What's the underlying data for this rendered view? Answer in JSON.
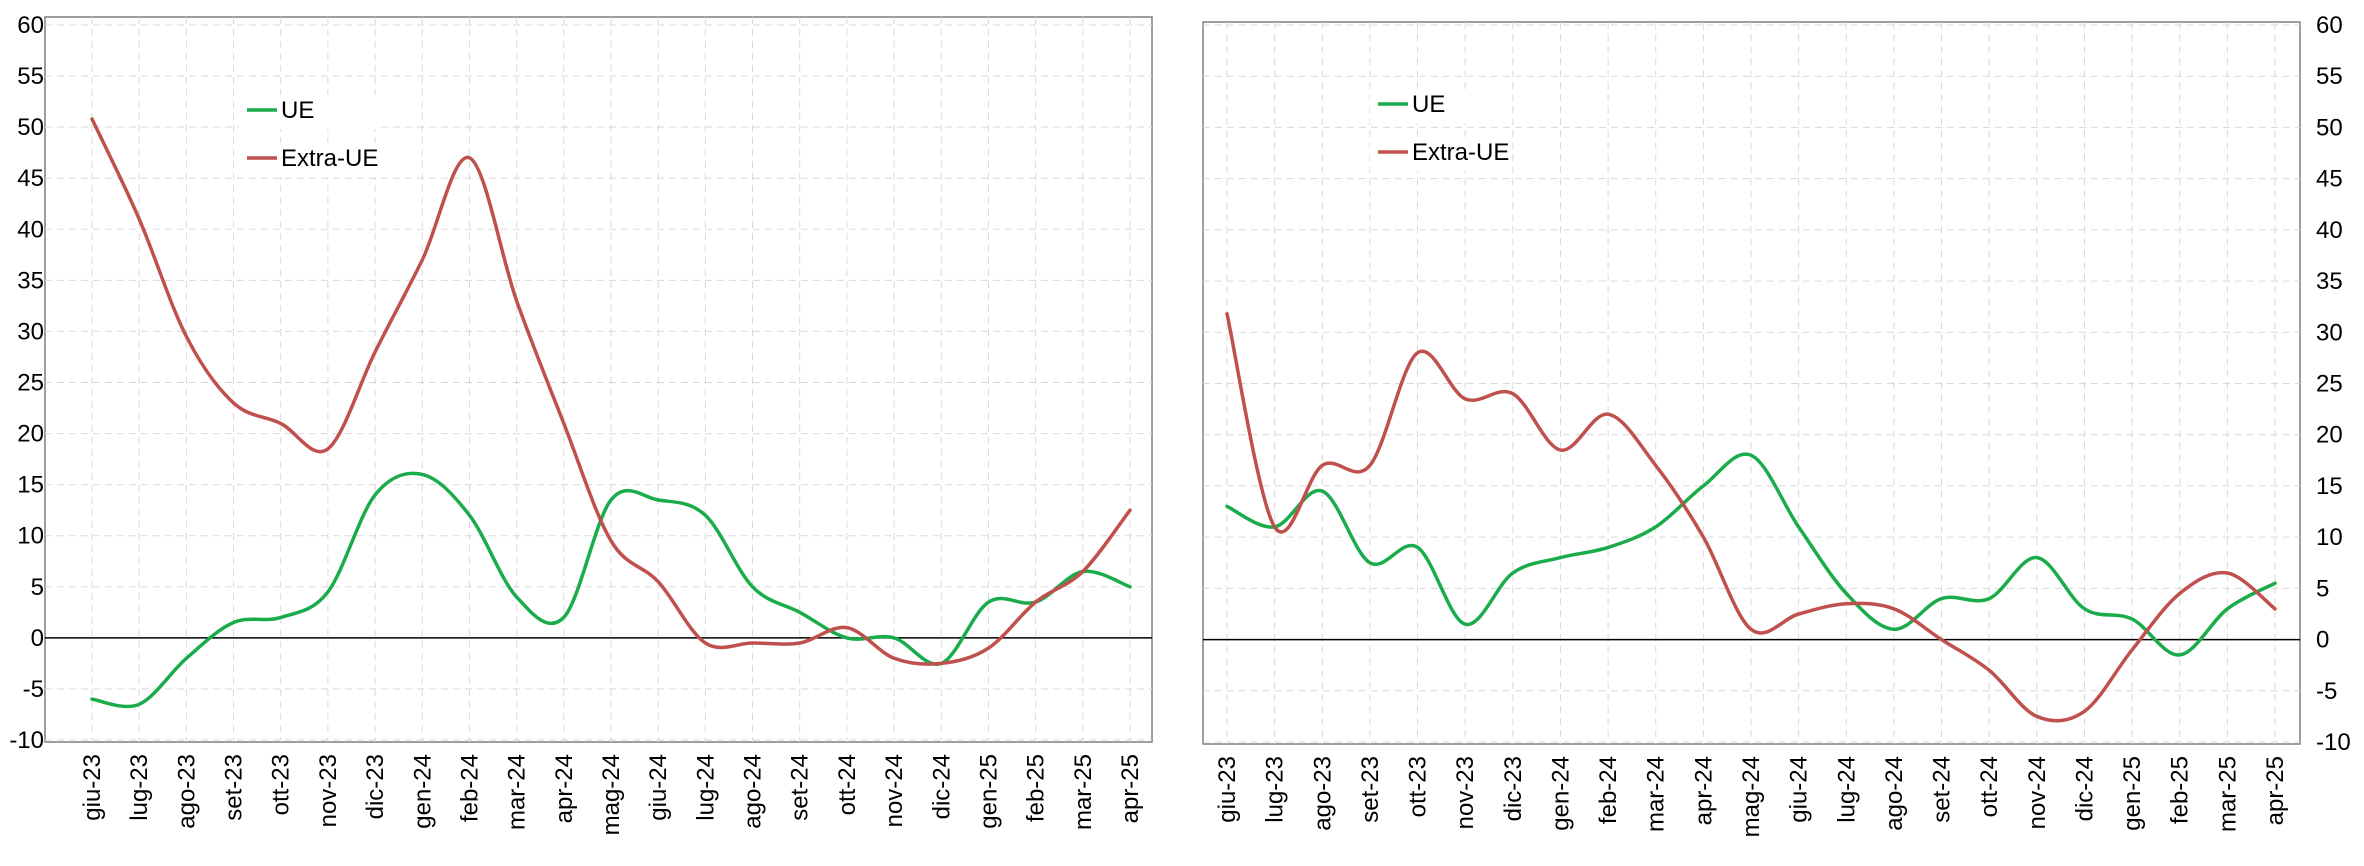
{
  "colors": {
    "ue": "#1aac4a",
    "extra_ue": "#c0504d",
    "grid": "#d9d9d9",
    "axis": "#000000",
    "frame": "#7f7f7f"
  },
  "chart_data": [
    {
      "type": "line",
      "categories": [
        "giu-23",
        "lug-23",
        "ago-23",
        "set-23",
        "ott-23",
        "nov-23",
        "dic-23",
        "gen-24",
        "feb-24",
        "mar-24",
        "apr-24",
        "mag-24",
        "giu-24",
        "lug-24",
        "ago-24",
        "set-24",
        "ott-24",
        "nov-24",
        "dic-24",
        "gen-25",
        "feb-25",
        "mar-25",
        "apr-25"
      ],
      "series": [
        {
          "name": "UE",
          "color": "#1aac4a",
          "values": [
            -6,
            -6.5,
            -2,
            1.5,
            2,
            4.5,
            14,
            16,
            12,
            4,
            2,
            13.5,
            13.5,
            12,
            5,
            2.5,
            0,
            0,
            -2.5,
            3.5,
            3.5,
            6.5,
            5
          ]
        },
        {
          "name": "Extra-UE",
          "color": "#c0504d",
          "values": [
            50.8,
            41,
            29.5,
            23,
            21,
            18.5,
            28,
            37,
            47,
            33,
            21,
            9.5,
            5.5,
            -0.5,
            -0.5,
            -0.5,
            1,
            -2,
            -2.5,
            -1,
            3.5,
            6.5,
            12.5
          ]
        }
      ],
      "ylim": [
        -10,
        60
      ],
      "yticks": [
        -10,
        -5,
        0,
        5,
        10,
        15,
        20,
        25,
        30,
        35,
        40,
        45,
        50,
        55,
        60
      ],
      "y_axis_side": "left",
      "grid": true,
      "legend": "top-left"
    },
    {
      "type": "line",
      "categories": [
        "giu-23",
        "lug-23",
        "ago-23",
        "set-23",
        "ott-23",
        "nov-23",
        "dic-23",
        "gen-24",
        "feb-24",
        "mar-24",
        "apr-24",
        "mag-24",
        "giu-24",
        "lug-24",
        "ago-24",
        "set-24",
        "ott-24",
        "nov-24",
        "dic-24",
        "gen-25",
        "feb-25",
        "mar-25",
        "apr-25"
      ],
      "series": [
        {
          "name": "UE",
          "color": "#1aac4a",
          "values": [
            13,
            11,
            14.5,
            7.5,
            9,
            1.5,
            6.5,
            8,
            9,
            11,
            15,
            18,
            11,
            4.5,
            1,
            4,
            4,
            8,
            3,
            2,
            -1.5,
            3,
            5.5
          ]
        },
        {
          "name": "Extra-UE",
          "color": "#c0504d",
          "values": [
            31.8,
            11,
            17,
            17,
            28,
            23.5,
            24,
            18.5,
            22,
            17,
            10,
            1,
            2.5,
            3.5,
            3,
            0,
            -3,
            -7.5,
            -7,
            -1,
            4.5,
            6.5,
            3
          ]
        }
      ],
      "ylim": [
        -10,
        60
      ],
      "yticks": [
        -10,
        -5,
        0,
        5,
        10,
        15,
        20,
        25,
        30,
        35,
        40,
        45,
        50,
        55,
        60
      ],
      "y_axis_side": "right",
      "grid": true,
      "legend": "top-left"
    }
  ]
}
